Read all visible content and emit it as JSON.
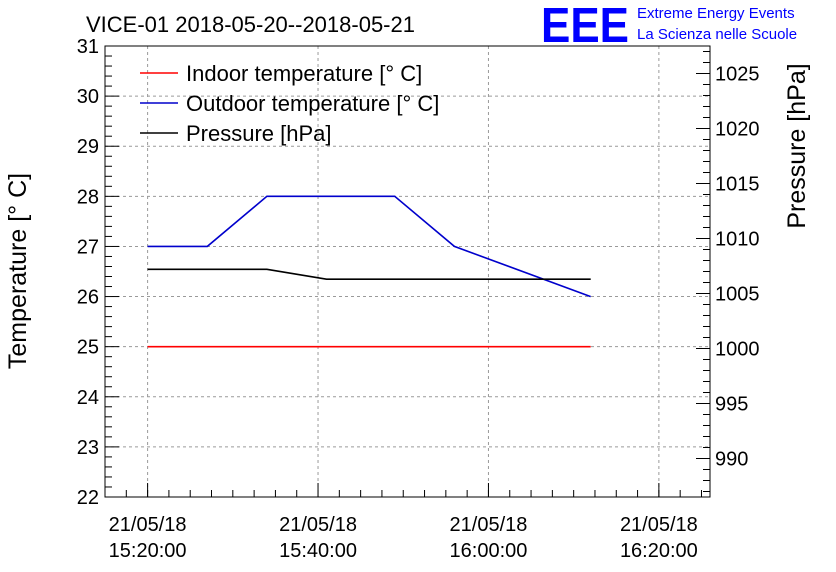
{
  "chart_data": {
    "type": "line",
    "title": "VICE-01 2018-05-20--2018-05-21",
    "logo": {
      "text": "EEE",
      "line1": "Extreme Energy Events",
      "line2": "La Scienza nelle Scuole"
    },
    "ylabel": "Temperature [° C]",
    "y2label": "Pressure [hPa]",
    "ylim": [
      22,
      31
    ],
    "y2lim": [
      986.5,
      1027.5
    ],
    "xlim": [
      "21/05/18 15:15:00",
      "21/05/18 16:26:00"
    ],
    "yticks": [
      22,
      23,
      24,
      25,
      26,
      27,
      28,
      29,
      30,
      31
    ],
    "y2ticks": [
      990,
      995,
      1000,
      1005,
      1010,
      1015,
      1020,
      1025
    ],
    "xticks": [
      {
        "date": "21/05/18",
        "time": "15:20:00",
        "value": "21/05/18 15:20:00"
      },
      {
        "date": "21/05/18",
        "time": "15:40:00",
        "value": "21/05/18 15:40:00"
      },
      {
        "date": "21/05/18",
        "time": "16:00:00",
        "value": "21/05/18 16:00:00"
      },
      {
        "date": "21/05/18",
        "time": "16:20:00",
        "value": "21/05/18 16:20:00"
      }
    ],
    "grid": true,
    "legend_position": "top-left",
    "series": [
      {
        "name": "Indoor temperature [° C]",
        "color": "#ff0000",
        "axis": "left",
        "points": [
          {
            "x": "21/05/18 15:20:00",
            "y": 25
          },
          {
            "x": "21/05/18 16:12:00",
            "y": 25
          }
        ]
      },
      {
        "name": "Outdoor temperature [° C]",
        "color": "#0000cc",
        "axis": "left",
        "points": [
          {
            "x": "21/05/18 15:20:00",
            "y": 27
          },
          {
            "x": "21/05/18 15:27:00",
            "y": 27
          },
          {
            "x": "21/05/18 15:34:00",
            "y": 28
          },
          {
            "x": "21/05/18 15:49:00",
            "y": 28
          },
          {
            "x": "21/05/18 15:56:00",
            "y": 27
          },
          {
            "x": "21/05/18 16:12:00",
            "y": 26
          }
        ]
      },
      {
        "name": "Pressure [hPa]",
        "color": "#000000",
        "axis": "right",
        "points": [
          {
            "x": "21/05/18 15:20:00",
            "y": 1007.2
          },
          {
            "x": "21/05/18 15:34:00",
            "y": 1007.2
          },
          {
            "x": "21/05/18 15:41:00",
            "y": 1006.3
          },
          {
            "x": "21/05/18 16:12:00",
            "y": 1006.3
          }
        ]
      }
    ]
  }
}
